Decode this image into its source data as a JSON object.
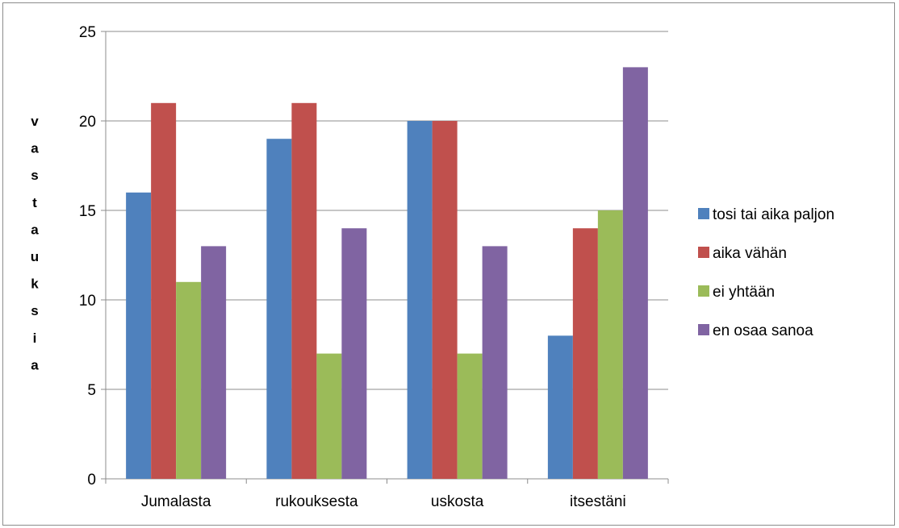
{
  "chart_data": {
    "type": "bar",
    "title": "",
    "xlabel": "",
    "ylabel": "vastauksia",
    "categories": [
      "Jumalasta",
      "rukouksesta",
      "uskosta",
      "itsestäni"
    ],
    "ylim": [
      0,
      25
    ],
    "yticks": [
      0,
      5,
      10,
      15,
      20,
      25
    ],
    "grid": true,
    "legend_position": "right",
    "series": [
      {
        "name": "tosi tai aika paljon",
        "color": "#4F81BD",
        "values": [
          16,
          19,
          20,
          8
        ]
      },
      {
        "name": "aika vähän",
        "color": "#C0504D",
        "values": [
          21,
          21,
          20,
          14
        ]
      },
      {
        "name": "ei yhtään",
        "color": "#9BBB59",
        "values": [
          11,
          7,
          7,
          15
        ]
      },
      {
        "name": "en osaa sanoa",
        "color": "#8064A2",
        "values": [
          13,
          14,
          13,
          23
        ]
      }
    ]
  }
}
